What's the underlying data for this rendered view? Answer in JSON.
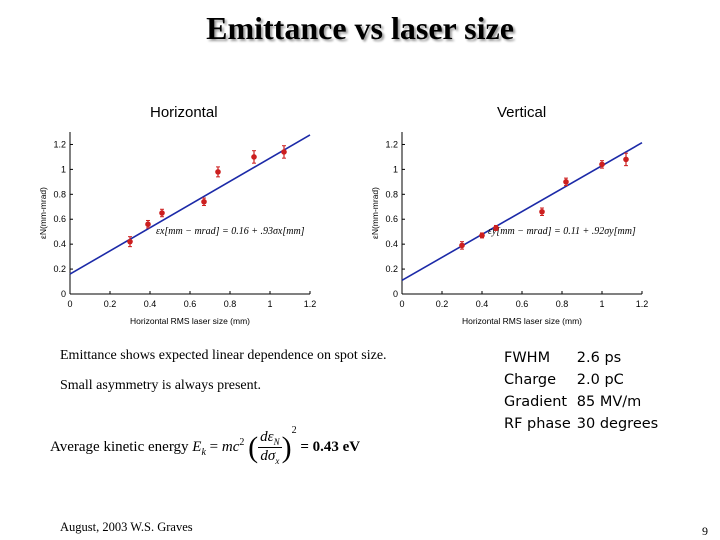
{
  "title": "Emittance vs laser size",
  "chart_data": [
    {
      "type": "scatter",
      "title": "Horizontal",
      "xlabel": "Horizontal RMS laser size  (mm)",
      "ylabel": "εN(mm-mrad)",
      "xlim": [
        0,
        1.2
      ],
      "ylim": [
        0,
        1.3
      ],
      "xticks": [
        "0",
        "0.2",
        "0.4",
        "0.6",
        "0.8",
        "1",
        "1.2"
      ],
      "yticks": [
        "0",
        "0.2",
        "0.4",
        "0.6",
        "0.8",
        "1",
        "1.2"
      ],
      "fit": {
        "intercept": 0.16,
        "slope": 0.93,
        "x_range": [
          0,
          1.2
        ]
      },
      "equation": "εx[mm − mrad] = 0.16 + .93σx[mm]",
      "points": [
        {
          "x": 0.3,
          "y": 0.42,
          "err": 0.04
        },
        {
          "x": 0.39,
          "y": 0.56,
          "err": 0.03
        },
        {
          "x": 0.46,
          "y": 0.65,
          "err": 0.03
        },
        {
          "x": 0.67,
          "y": 0.74,
          "err": 0.03
        },
        {
          "x": 0.74,
          "y": 0.98,
          "err": 0.04
        },
        {
          "x": 0.92,
          "y": 1.1,
          "err": 0.05
        },
        {
          "x": 1.07,
          "y": 1.14,
          "err": 0.05
        }
      ]
    },
    {
      "type": "scatter",
      "title": "Vertical",
      "xlabel": "Horizontal RMS laser size  (mm)",
      "ylabel": "εN(mm-mrad)",
      "xlim": [
        0,
        1.2
      ],
      "ylim": [
        0,
        1.3
      ],
      "xticks": [
        "0",
        "0.2",
        "0.4",
        "0.6",
        "0.8",
        "1",
        "1.2"
      ],
      "yticks": [
        "0",
        "0.2",
        "0.4",
        "0.6",
        "0.8",
        "1",
        "1.2"
      ],
      "fit": {
        "intercept": 0.11,
        "slope": 0.92,
        "x_range": [
          0,
          1.2
        ]
      },
      "equation": "εy[mm − mrad] = 0.11 + .92σy[mm]",
      "points": [
        {
          "x": 0.3,
          "y": 0.39,
          "err": 0.03
        },
        {
          "x": 0.4,
          "y": 0.47,
          "err": 0.02
        },
        {
          "x": 0.47,
          "y": 0.53,
          "err": 0.02
        },
        {
          "x": 0.7,
          "y": 0.66,
          "err": 0.03
        },
        {
          "x": 0.82,
          "y": 0.9,
          "err": 0.03
        },
        {
          "x": 1.0,
          "y": 1.04,
          "err": 0.03
        },
        {
          "x": 1.12,
          "y": 1.08,
          "err": 0.05
        }
      ]
    }
  ],
  "notes": {
    "line1": "Emittance shows expected linear dependence on spot size.",
    "line2": "Small asymmetry is always present."
  },
  "formula": {
    "label": "Average kinetic energy",
    "result": "= 0.43 eV"
  },
  "params": [
    {
      "label": "FWHM",
      "value": "2.6 ps"
    },
    {
      "label": "Charge",
      "value": "2.0 pC"
    },
    {
      "label": "Gradient",
      "value": "85 MV/m"
    },
    {
      "label": "RF phase",
      "value": "30 degrees"
    }
  ],
  "footer": "August, 2003  W.S. Graves",
  "page_number": "9",
  "colors": {
    "point": "#cc1f1f",
    "fit": "#1c2aa8"
  }
}
